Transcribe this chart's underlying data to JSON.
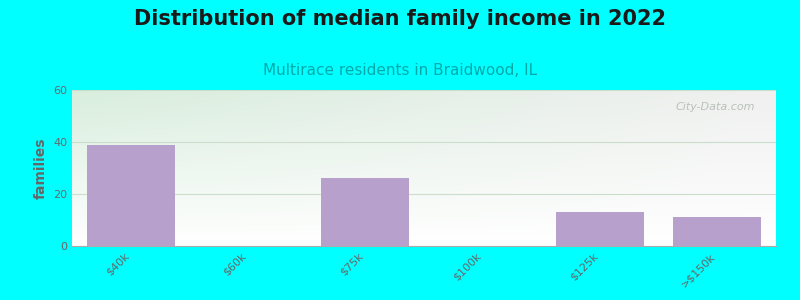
{
  "title": "Distribution of median family income in 2022",
  "subtitle": "Multirace residents in Braidwood, IL",
  "categories": [
    "$40k",
    "$60k",
    "$75k",
    "$100k",
    "$125k",
    ">$150k"
  ],
  "values": [
    39,
    0,
    26,
    0,
    13,
    11
  ],
  "bar_color": "#b8a0cc",
  "ylabel": "families",
  "ylim": [
    0,
    60
  ],
  "yticks": [
    0,
    20,
    40,
    60
  ],
  "bg_color": "#00ffff",
  "plot_bg_topleft": "#d8eedd",
  "plot_bg_right": "#f0f0f0",
  "plot_bg_bottom": "#ffffff",
  "title_fontsize": 15,
  "subtitle_fontsize": 11,
  "subtitle_color": "#00aaaa",
  "tick_label_color": "#666666",
  "ylabel_color": "#666666",
  "grid_color": "#ccddcc",
  "watermark": "City-Data.com"
}
